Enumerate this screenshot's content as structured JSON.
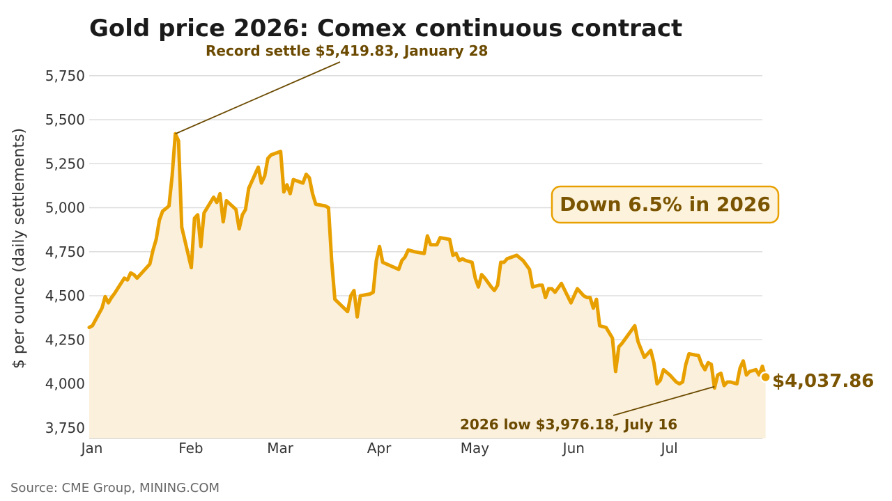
{
  "chart_data": {
    "type": "area",
    "title": "Gold price 2026: Comex continuous contract",
    "ylabel": "$ per ounce (daily settlements)",
    "xlabel": "",
    "ylim": [
      3690,
      5840
    ],
    "xlim": [
      "2026-01-01",
      "2026-07-31"
    ],
    "yticks": [
      3750,
      4000,
      4250,
      4500,
      4750,
      5000,
      5250,
      5500,
      5750
    ],
    "ytick_labels": [
      "3,750",
      "4,000",
      "4,250",
      "4,500",
      "4,750",
      "5,000",
      "5,250",
      "5,500",
      "5,750"
    ],
    "xticks": [
      "2026-01-01",
      "2026-02-01",
      "2026-03-01",
      "2026-04-01",
      "2026-05-01",
      "2026-06-01",
      "2026-07-01"
    ],
    "xtick_labels": [
      "Jan",
      "Feb",
      "Mar",
      "Apr",
      "May",
      "Jun",
      "Jul"
    ],
    "grid": "horizontal",
    "colors": {
      "line": "#e8a000",
      "fill": "#fbf0dc",
      "annotation": "#6b4a00",
      "end_label": "#7a5400",
      "box_border": "#e8a000",
      "box_fill": "#fdf3dc",
      "grid": "#dddddd"
    },
    "series": [
      {
        "points": [
          [
            "2026-01-01",
            4320
          ],
          [
            "2026-01-02",
            4330
          ],
          [
            "2026-01-05",
            4430
          ],
          [
            "2026-01-06",
            4495
          ],
          [
            "2026-01-07",
            4460
          ],
          [
            "2026-01-08",
            4490
          ],
          [
            "2026-01-09",
            4515
          ],
          [
            "2026-01-12",
            4600
          ],
          [
            "2026-01-13",
            4590
          ],
          [
            "2026-01-14",
            4630
          ],
          [
            "2026-01-15",
            4620
          ],
          [
            "2026-01-16",
            4600
          ],
          [
            "2026-01-20",
            4680
          ],
          [
            "2026-01-21",
            4760
          ],
          [
            "2026-01-22",
            4820
          ],
          [
            "2026-01-23",
            4930
          ],
          [
            "2026-01-24",
            4980
          ],
          [
            "2026-01-26",
            5010
          ],
          [
            "2026-01-27",
            5180
          ],
          [
            "2026-01-28",
            5419.83
          ],
          [
            "2026-01-29",
            5380
          ],
          [
            "2026-01-30",
            4890
          ],
          [
            "2026-02-02",
            4660
          ],
          [
            "2026-02-03",
            4940
          ],
          [
            "2026-02-04",
            4960
          ],
          [
            "2026-02-05",
            4780
          ],
          [
            "2026-02-06",
            4970
          ],
          [
            "2026-02-09",
            5060
          ],
          [
            "2026-02-10",
            5030
          ],
          [
            "2026-02-11",
            5080
          ],
          [
            "2026-02-12",
            4920
          ],
          [
            "2026-02-13",
            5040
          ],
          [
            "2026-02-16",
            4990
          ],
          [
            "2026-02-17",
            4880
          ],
          [
            "2026-02-18",
            4960
          ],
          [
            "2026-02-19",
            4990
          ],
          [
            "2026-02-20",
            5110
          ],
          [
            "2026-02-23",
            5230
          ],
          [
            "2026-02-24",
            5140
          ],
          [
            "2026-02-25",
            5180
          ],
          [
            "2026-02-26",
            5280
          ],
          [
            "2026-02-27",
            5300
          ],
          [
            "2026-03-02",
            5320
          ],
          [
            "2026-03-03",
            5090
          ],
          [
            "2026-03-04",
            5130
          ],
          [
            "2026-03-05",
            5080
          ],
          [
            "2026-03-06",
            5160
          ],
          [
            "2026-03-09",
            5140
          ],
          [
            "2026-03-10",
            5190
          ],
          [
            "2026-03-11",
            5170
          ],
          [
            "2026-03-12",
            5080
          ],
          [
            "2026-03-13",
            5020
          ],
          [
            "2026-03-16",
            5010
          ],
          [
            "2026-03-17",
            5000
          ],
          [
            "2026-03-18",
            4700
          ],
          [
            "2026-03-19",
            4480
          ],
          [
            "2026-03-23",
            4410
          ],
          [
            "2026-03-24",
            4500
          ],
          [
            "2026-03-25",
            4530
          ],
          [
            "2026-03-26",
            4380
          ],
          [
            "2026-03-27",
            4500
          ],
          [
            "2026-03-30",
            4510
          ],
          [
            "2026-03-31",
            4520
          ],
          [
            "2026-04-01",
            4700
          ],
          [
            "2026-04-02",
            4780
          ],
          [
            "2026-04-03",
            4690
          ],
          [
            "2026-04-08",
            4650
          ],
          [
            "2026-04-09",
            4700
          ],
          [
            "2026-04-10",
            4720
          ],
          [
            "2026-04-11",
            4760
          ],
          [
            "2026-04-13",
            4750
          ],
          [
            "2026-04-16",
            4740
          ],
          [
            "2026-04-17",
            4840
          ],
          [
            "2026-04-18",
            4790
          ],
          [
            "2026-04-20",
            4790
          ],
          [
            "2026-04-21",
            4830
          ],
          [
            "2026-04-24",
            4820
          ],
          [
            "2026-04-25",
            4730
          ],
          [
            "2026-04-26",
            4740
          ],
          [
            "2026-04-27",
            4700
          ],
          [
            "2026-04-28",
            4710
          ],
          [
            "2026-04-29",
            4700
          ],
          [
            "2026-05-01",
            4690
          ],
          [
            "2026-05-02",
            4600
          ],
          [
            "2026-05-03",
            4550
          ],
          [
            "2026-05-04",
            4620
          ],
          [
            "2026-05-05",
            4600
          ],
          [
            "2026-05-07",
            4550
          ],
          [
            "2026-05-08",
            4530
          ],
          [
            "2026-05-09",
            4560
          ],
          [
            "2026-05-10",
            4690
          ],
          [
            "2026-05-11",
            4690
          ],
          [
            "2026-05-12",
            4710
          ],
          [
            "2026-05-15",
            4730
          ],
          [
            "2026-05-17",
            4700
          ],
          [
            "2026-05-19",
            4650
          ],
          [
            "2026-05-20",
            4550
          ],
          [
            "2026-05-22",
            4560
          ],
          [
            "2026-05-23",
            4560
          ],
          [
            "2026-05-24",
            4490
          ],
          [
            "2026-05-25",
            4540
          ],
          [
            "2026-05-26",
            4540
          ],
          [
            "2026-05-27",
            4520
          ],
          [
            "2026-05-29",
            4570
          ],
          [
            "2026-06-01",
            4460
          ],
          [
            "2026-06-03",
            4540
          ],
          [
            "2026-06-05",
            4500
          ],
          [
            "2026-06-06",
            4490
          ],
          [
            "2026-06-07",
            4490
          ],
          [
            "2026-06-08",
            4430
          ],
          [
            "2026-06-09",
            4480
          ],
          [
            "2026-06-10",
            4330
          ],
          [
            "2026-06-12",
            4320
          ],
          [
            "2026-06-14",
            4260
          ],
          [
            "2026-06-15",
            4070
          ],
          [
            "2026-06-16",
            4210
          ],
          [
            "2026-06-17",
            4230
          ],
          [
            "2026-06-21",
            4330
          ],
          [
            "2026-06-22",
            4240
          ],
          [
            "2026-06-24",
            4150
          ],
          [
            "2026-06-26",
            4190
          ],
          [
            "2026-06-27",
            4120
          ],
          [
            "2026-06-28",
            4000
          ],
          [
            "2026-06-29",
            4020
          ],
          [
            "2026-06-30",
            4080
          ],
          [
            "2026-07-02",
            4050
          ],
          [
            "2026-07-03",
            4030
          ],
          [
            "2026-07-04",
            4010
          ],
          [
            "2026-07-05",
            4000
          ],
          [
            "2026-07-06",
            4010
          ],
          [
            "2026-07-07",
            4110
          ],
          [
            "2026-07-08",
            4170
          ],
          [
            "2026-07-11",
            4160
          ],
          [
            "2026-07-12",
            4110
          ],
          [
            "2026-07-13",
            4080
          ],
          [
            "2026-07-14",
            4120
          ],
          [
            "2026-07-15",
            4110
          ],
          [
            "2026-07-16",
            3976.18
          ],
          [
            "2026-07-17",
            4050
          ],
          [
            "2026-07-18",
            4060
          ],
          [
            "2026-07-19",
            3990
          ],
          [
            "2026-07-20",
            4010
          ],
          [
            "2026-07-21",
            4010
          ],
          [
            "2026-07-23",
            4000
          ],
          [
            "2026-07-24",
            4090
          ],
          [
            "2026-07-25",
            4130
          ],
          [
            "2026-07-26",
            4050
          ],
          [
            "2026-07-27",
            4070
          ],
          [
            "2026-07-29",
            4080
          ],
          [
            "2026-07-30",
            4050
          ],
          [
            "2026-07-31",
            4100
          ],
          [
            "2026-08-01",
            4037.86
          ]
        ]
      }
    ],
    "annotations": {
      "record": {
        "text": "Record settle $5,419.83, January 28",
        "x": "2026-01-28",
        "y": 5419.83
      },
      "low": {
        "text": "2026 low $3,976.18, July 16",
        "x": "2026-07-16",
        "y": 3976.18
      },
      "end_label": "$4,037.86",
      "box": "Down 6.5% in 2026"
    },
    "source": "Source: CME Group, MINING.COM"
  }
}
